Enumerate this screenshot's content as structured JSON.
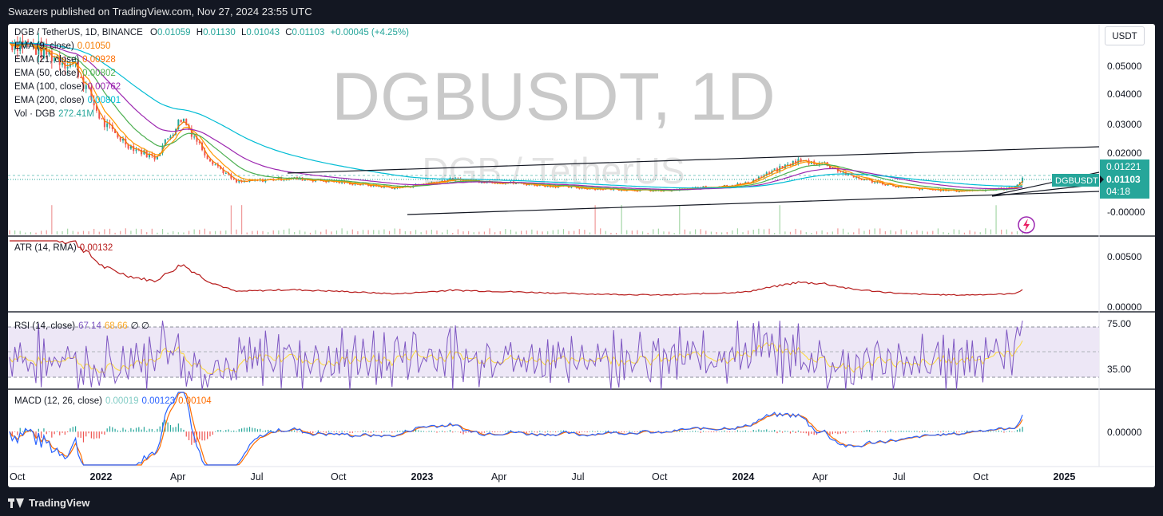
{
  "header": {
    "published_text": "Swazers published on TradingView.com, Nov 27, 2024 23:55 UTC"
  },
  "footer": {
    "brand": "TradingView"
  },
  "watermark": {
    "symbol": "DGBUSDT, 1D",
    "description": "DGB / TetherUS"
  },
  "currency_button": "USDT",
  "legend": {
    "main": {
      "title": "DGB / TetherUS, 1D, BINANCE",
      "O_label": "O",
      "O": "0.01059",
      "H_label": "H",
      "H": "0.01130",
      "L_label": "L",
      "L": "0.01043",
      "C_label": "C",
      "C": "0.01103",
      "change": "+0.00045 (+4.25%)"
    },
    "ema9": {
      "label": "EMA (9, close)",
      "value": "0.01050"
    },
    "ema21": {
      "label": "EMA (21, close)",
      "value": "0.00928"
    },
    "ema50": {
      "label": "EMA (50, close)",
      "value": "0.00802"
    },
    "ema100": {
      "label": "EMA (100, close)",
      "value": "0.00762"
    },
    "ema200": {
      "label": "EMA (200, close)",
      "value": "0.00801"
    },
    "vol": {
      "label": "Vol · DGB",
      "value": "272.41M"
    },
    "atr": {
      "label": "ATR (14, RMA)",
      "value": "0.00132"
    },
    "rsi": {
      "label": "RSI (14, close)",
      "value": "67.14",
      "ma": "68.66",
      "extra": "∅  ∅"
    },
    "macd": {
      "label": "MACD (12, 26, close)",
      "hist": "0.00019",
      "macd": "0.00123",
      "signal": "0.00104"
    }
  },
  "price_tags": {
    "high_tag": "0.01221",
    "symbol_tag": "DGBUSDT",
    "last_price": "0.01103",
    "countdown": "04:18"
  },
  "colors": {
    "up": "#26a69a",
    "down": "#ef5350",
    "ema9": "#f57c00",
    "ema21": "#ff9800",
    "ema50": "#4caf50",
    "ema100": "#9c27b0",
    "ema200": "#00bcd4",
    "atr": "#b71c1c",
    "rsi": "#7e57c2",
    "rsi_ma": "#fdd835",
    "macd": "#2962ff",
    "signal": "#ff6d00"
  },
  "chart_data": {
    "type": "line",
    "x_ticks": [
      "Oct",
      "2022",
      "Apr",
      "Jul",
      "Oct",
      "2023",
      "Apr",
      "Jul",
      "Oct",
      "2024",
      "Apr",
      "Jul",
      "Oct",
      "2025"
    ],
    "price_pane": {
      "y_ticks": [
        "0.05000",
        "0.04000",
        "0.03000",
        "0.02000",
        "-0.00000"
      ],
      "approx_close": [
        {
          "t": "2021-10",
          "v": 0.058
        },
        {
          "t": "2021-12",
          "v": 0.05
        },
        {
          "t": "2022-01",
          "v": 0.03
        },
        {
          "t": "2022-02",
          "v": 0.022
        },
        {
          "t": "2022-03",
          "v": 0.018
        },
        {
          "t": "2022-04",
          "v": 0.032
        },
        {
          "t": "2022-05",
          "v": 0.018
        },
        {
          "t": "2022-06",
          "v": 0.0095
        },
        {
          "t": "2022-08",
          "v": 0.011
        },
        {
          "t": "2022-10",
          "v": 0.0095
        },
        {
          "t": "2022-12",
          "v": 0.0075
        },
        {
          "t": "2023-02",
          "v": 0.0105
        },
        {
          "t": "2023-04",
          "v": 0.0095
        },
        {
          "t": "2023-07",
          "v": 0.0075
        },
        {
          "t": "2023-10",
          "v": 0.0065
        },
        {
          "t": "2024-01",
          "v": 0.009
        },
        {
          "t": "2024-03",
          "v": 0.017
        },
        {
          "t": "2024-04",
          "v": 0.016
        },
        {
          "t": "2024-05",
          "v": 0.0115
        },
        {
          "t": "2024-07",
          "v": 0.0075
        },
        {
          "t": "2024-09",
          "v": 0.0065
        },
        {
          "t": "2024-11",
          "v": 0.0075
        },
        {
          "t": "2024-11-27",
          "v": 0.01103
        }
      ]
    },
    "atr_pane": {
      "y_ticks": [
        "0.00500",
        "0.00000"
      ],
      "last": 0.00132
    },
    "rsi_pane": {
      "y_ticks": [
        "75.00",
        "35.00"
      ],
      "last": 67.14,
      "ma": 68.66
    },
    "macd_pane": {
      "y_ticks": [
        "0.00000"
      ],
      "macd": 0.00123,
      "signal": 0.00104,
      "hist": 0.00019
    }
  }
}
